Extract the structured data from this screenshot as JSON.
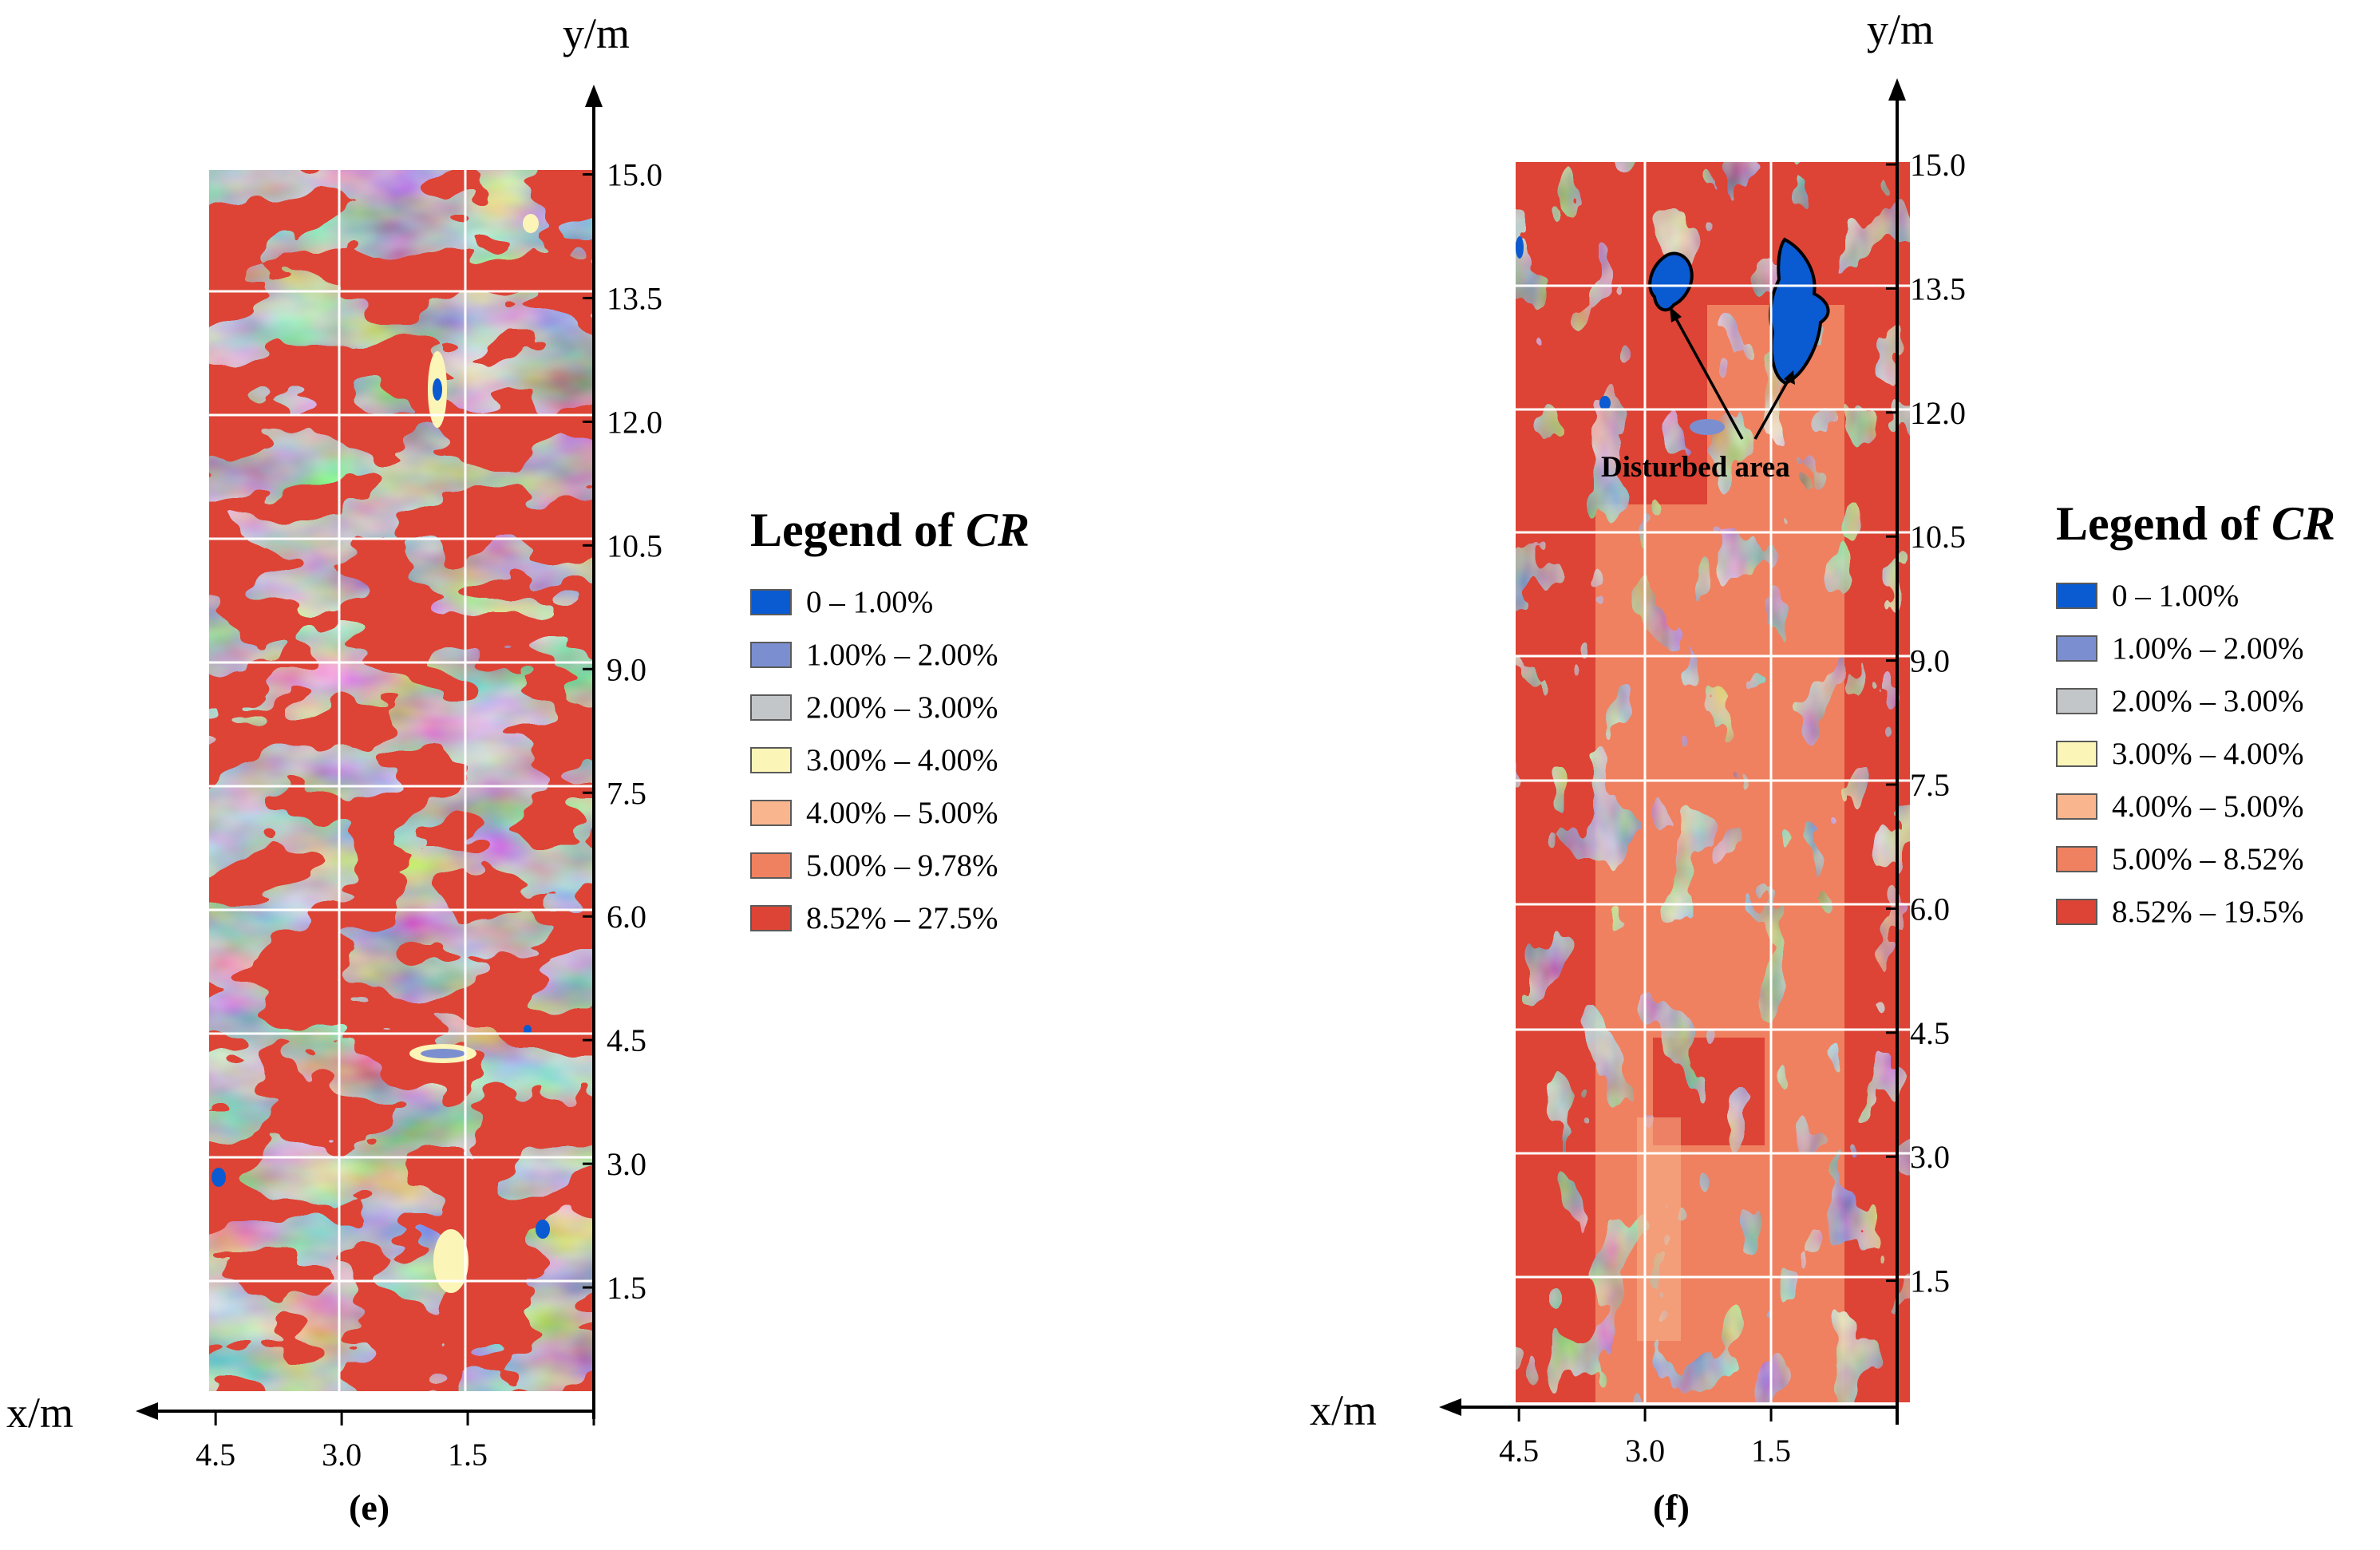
{
  "chart_data": [
    {
      "type": "heatmap",
      "panel_label": "(e)",
      "xlabel": "x/m",
      "ylabel": "y/m",
      "x_axis_direction": "right-to-left",
      "xlim": [
        0,
        4.8
      ],
      "ylim": [
        0,
        15.3
      ],
      "x_ticks": [
        "4.5",
        "3.0",
        "1.5"
      ],
      "x_tick_values": [
        4.5,
        3.0,
        1.5
      ],
      "y_ticks": [
        "1.5",
        "3.0",
        "4.5",
        "6.0",
        "7.5",
        "9.0",
        "10.5",
        "12.0",
        "13.5",
        "15.0"
      ],
      "y_tick_values": [
        1.5,
        3.0,
        4.5,
        6.0,
        7.5,
        9.0,
        10.5,
        12.0,
        13.5,
        15.0
      ],
      "grid": true,
      "legend_title_prefix": "Legend of ",
      "legend_title_var": "CR",
      "legend_position": "right",
      "legend": [
        {
          "label": "0 – 1.00%",
          "color": "#0a5ad2"
        },
        {
          "label": "1.00% – 2.00%",
          "color": "#7b8fd0"
        },
        {
          "label": "2.00% – 3.00%",
          "color": "#c3c6c8"
        },
        {
          "label": "3.00% – 4.00%",
          "color": "#fcf5b8"
        },
        {
          "label": "4.00% – 5.00%",
          "color": "#f8b58e"
        },
        {
          "label": "5.00% – 9.78%",
          "color": "#ef8160"
        },
        {
          "label": "8.52% – 27.5%",
          "color": "#dd4436"
        }
      ],
      "annotations": []
    },
    {
      "type": "heatmap",
      "panel_label": "(f)",
      "xlabel": "x/m",
      "ylabel": "y/m",
      "x_axis_direction": "right-to-left",
      "xlim": [
        0,
        4.8
      ],
      "ylim": [
        0,
        15.3
      ],
      "x_ticks": [
        "4.5",
        "3.0",
        "1.5"
      ],
      "x_tick_values": [
        4.5,
        3.0,
        1.5
      ],
      "y_ticks": [
        "1.5",
        "3.0",
        "4.5",
        "6.0",
        "7.5",
        "9.0",
        "10.5",
        "12.0",
        "13.5",
        "15.0"
      ],
      "y_tick_values": [
        1.5,
        3.0,
        4.5,
        6.0,
        7.5,
        9.0,
        10.5,
        12.0,
        13.5,
        15.0
      ],
      "grid": true,
      "legend_title_prefix": "Legend of ",
      "legend_title_var": "CR",
      "legend_position": "right",
      "legend": [
        {
          "label": "0 – 1.00%",
          "color": "#0a5ad2"
        },
        {
          "label": "1.00% – 2.00%",
          "color": "#7b8fd0"
        },
        {
          "label": "2.00% – 3.00%",
          "color": "#c3c6c8"
        },
        {
          "label": "3.00% – 4.00%",
          "color": "#fcf5b8"
        },
        {
          "label": "4.00% – 5.00%",
          "color": "#f8b58e"
        },
        {
          "label": "5.00% – 8.52%",
          "color": "#ef8160"
        },
        {
          "label": "8.52% – 19.5%",
          "color": "#dd4436"
        }
      ],
      "annotations": [
        {
          "text": "Disturbed area",
          "targets": [
            "left disturbed zone (~x=2.6 m, y=13.4 m)",
            "right disturbed zone (~x=1.2 m, y=13.0 m)"
          ]
        }
      ]
    }
  ]
}
